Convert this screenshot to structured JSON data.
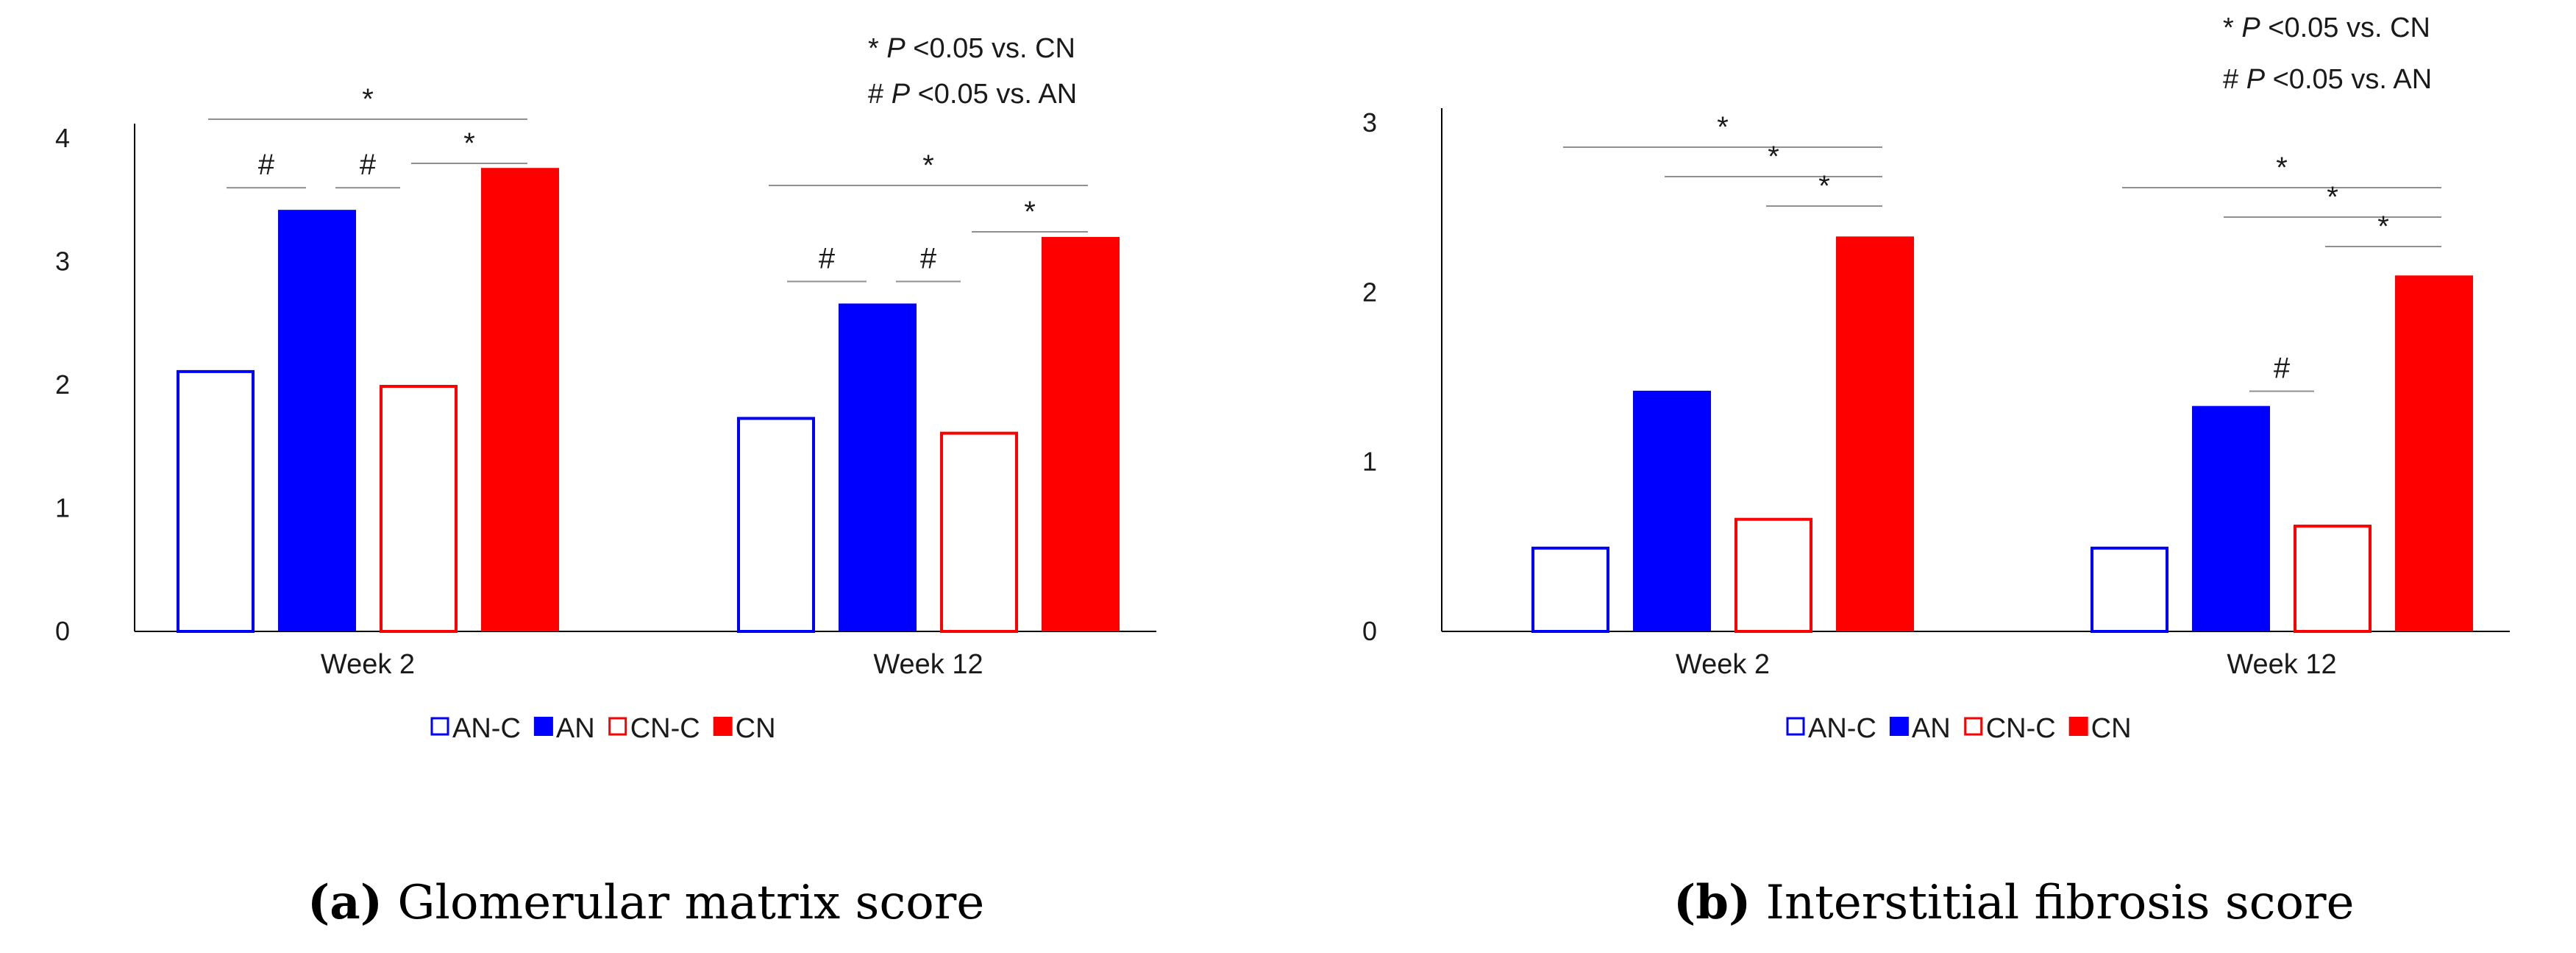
{
  "colors": {
    "blue": "#0000ff",
    "red": "#ff0000",
    "axis": "#000000",
    "sigline": "#909090"
  },
  "legend": [
    {
      "name": "AN-C",
      "color": "#0000ff",
      "filled": false
    },
    {
      "name": "AN",
      "color": "#0000ff",
      "filled": true
    },
    {
      "name": "CN-C",
      "color": "#ff0000",
      "filled": false
    },
    {
      "name": "CN",
      "color": "#ff0000",
      "filled": true
    }
  ],
  "panels": [
    {
      "id": "a",
      "caption_label": "(a)",
      "caption_text": "Glomerular matrix score",
      "annotations": [
        {
          "symbol": "*",
          "p": "P",
          "rest": "<0.05 vs. CN"
        },
        {
          "symbol": "#",
          "p": "P",
          "rest": "<0.05 vs. AN"
        }
      ],
      "chart_data": {
        "type": "bar",
        "title": "Glomerular matrix score",
        "categories": [
          "Week 2",
          "Week 12"
        ],
        "series": [
          {
            "name": "AN-C",
            "values": [
              2.12,
              1.74
            ]
          },
          {
            "name": "AN",
            "values": [
              3.42,
              2.66
            ]
          },
          {
            "name": "CN-C",
            "values": [
              2.0,
              1.62
            ]
          },
          {
            "name": "CN",
            "values": [
              3.76,
              3.2
            ]
          }
        ],
        "ylim": [
          0,
          4
        ],
        "yticks": [
          "0",
          "1",
          "2",
          "3",
          "4"
        ],
        "xlabel": "",
        "ylabel": "",
        "significance": [
          {
            "category": 0,
            "from": 0,
            "to": 3,
            "symbol": "*"
          },
          {
            "category": 0,
            "from": 2,
            "to": 3,
            "symbol": "*"
          },
          {
            "category": 0,
            "from": 0,
            "to": 1,
            "symbol": "#"
          },
          {
            "category": 0,
            "from": 1,
            "to": 2,
            "symbol": "#"
          },
          {
            "category": 1,
            "from": 0,
            "to": 3,
            "symbol": "*"
          },
          {
            "category": 1,
            "from": 2,
            "to": 3,
            "symbol": "*"
          },
          {
            "category": 1,
            "from": 0,
            "to": 1,
            "symbol": "#"
          },
          {
            "category": 1,
            "from": 1,
            "to": 2,
            "symbol": "#"
          }
        ]
      }
    },
    {
      "id": "b",
      "caption_label": "(b)",
      "caption_text": "Interstitial fibrosis score",
      "annotations": [
        {
          "symbol": "*",
          "p": "P",
          "rest": "<0.05 vs. CN"
        },
        {
          "symbol": "#",
          "p": "P",
          "rest": "<0.05 vs. AN"
        }
      ],
      "chart_data": {
        "type": "bar",
        "title": "Interstitial fibrosis score",
        "categories": [
          "Week 2",
          "Week 12"
        ],
        "series": [
          {
            "name": "AN-C",
            "values": [
              0.5,
              0.5
            ]
          },
          {
            "name": "AN",
            "values": [
              1.42,
              1.33
            ]
          },
          {
            "name": "CN-C",
            "values": [
              0.67,
              0.63
            ]
          },
          {
            "name": "CN",
            "values": [
              2.33,
              2.1
            ]
          }
        ],
        "ylim": [
          0,
          3
        ],
        "yticks": [
          "0",
          "1",
          "2",
          "3"
        ],
        "xlabel": "",
        "ylabel": "",
        "significance": [
          {
            "category": 0,
            "from": 0,
            "to": 3,
            "symbol": "*"
          },
          {
            "category": 0,
            "from": 1,
            "to": 3,
            "symbol": "*"
          },
          {
            "category": 0,
            "from": 2,
            "to": 3,
            "symbol": "*"
          },
          {
            "category": 1,
            "from": 0,
            "to": 3,
            "symbol": "*"
          },
          {
            "category": 1,
            "from": 1,
            "to": 3,
            "symbol": "*"
          },
          {
            "category": 1,
            "from": 2,
            "to": 3,
            "symbol": "*"
          },
          {
            "category": 1,
            "from": 1,
            "to": 2,
            "symbol": "#"
          }
        ]
      }
    }
  ]
}
